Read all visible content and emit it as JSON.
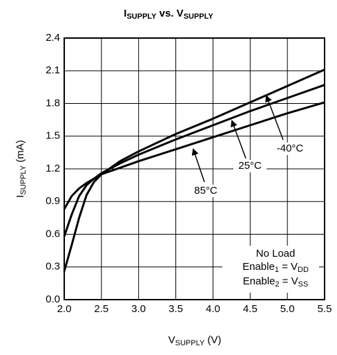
{
  "chart_data": {
    "type": "line",
    "title": [
      "I",
      "SUPPLY",
      " vs. V",
      "SUPPLY"
    ],
    "x_label": [
      "V",
      "SUPPLY",
      " (V)"
    ],
    "y_label": [
      "I",
      "SUPPLY",
      " (mA)"
    ],
    "x": [
      2.0,
      2.1,
      2.2,
      2.3,
      2.4,
      2.5,
      2.75,
      3.0,
      3.5,
      4.0,
      4.5,
      5.0,
      5.5
    ],
    "series": [
      {
        "name": "-40°C",
        "color": "#000000",
        "values": [
          0.26,
          0.5,
          0.75,
          0.96,
          1.08,
          1.15,
          1.27,
          1.36,
          1.52,
          1.66,
          1.81,
          1.96,
          2.11
        ]
      },
      {
        "name": "25°C",
        "color": "#000000",
        "values": [
          0.58,
          0.78,
          0.95,
          1.05,
          1.11,
          1.16,
          1.25,
          1.33,
          1.47,
          1.6,
          1.73,
          1.85,
          1.97
        ]
      },
      {
        "name": "85°C",
        "color": "#000000",
        "values": [
          0.83,
          0.95,
          1.02,
          1.07,
          1.11,
          1.15,
          1.21,
          1.27,
          1.38,
          1.49,
          1.6,
          1.71,
          1.81
        ]
      }
    ],
    "annotation": {
      "line1": "No Load",
      "line2": [
        "Enable",
        "1",
        " = V",
        "DD"
      ],
      "line3": [
        "Enable",
        "2",
        " = V",
        "SS"
      ]
    },
    "xlim": [
      2.0,
      5.5
    ],
    "xticks": [
      {
        "value": 2,
        "label": "2.0"
      },
      2.5,
      {
        "value": 3,
        "label": "3.0"
      },
      3.5,
      {
        "value": 4,
        "label": "4.0"
      },
      4.5,
      {
        "value": 5,
        "label": "5.0"
      },
      5.5
    ],
    "ylim": [
      0,
      2.4
    ],
    "yticks": [
      {
        "value": 0,
        "label": "0.0"
      },
      0.3,
      0.6,
      0.9,
      1.2,
      1.5,
      1.8,
      2.1,
      2.4
    ],
    "grid": true
  }
}
